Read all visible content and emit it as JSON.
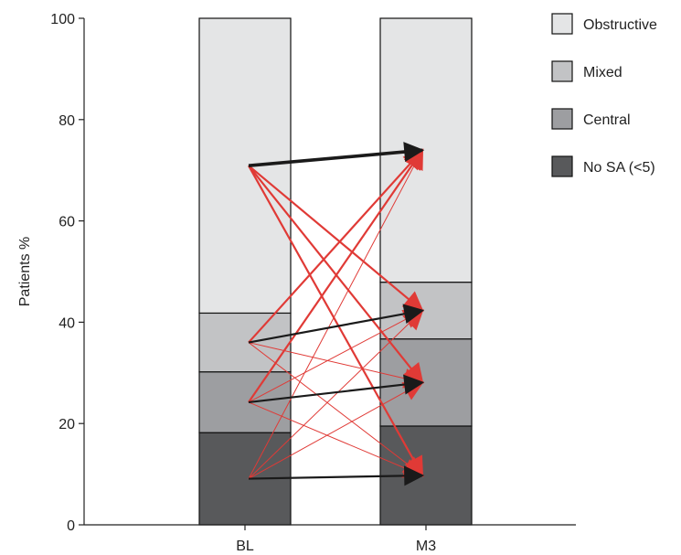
{
  "chart_data": {
    "type": "bar",
    "stacked": true,
    "ylabel": "Patients %",
    "ylim": [
      0,
      100
    ],
    "yticks": [
      0,
      20,
      40,
      60,
      80,
      100
    ],
    "categories": [
      "BL",
      "M3"
    ],
    "series": [
      {
        "name": "No SA (<5)",
        "color": "#58595b",
        "values": [
          18.2,
          19.5
        ]
      },
      {
        "name": "Central",
        "color": "#9d9ea1",
        "values": [
          12.0,
          17.2
        ]
      },
      {
        "name": "Mixed",
        "color": "#c2c3c5",
        "values": [
          11.6,
          11.2
        ]
      },
      {
        "name": "Obstructive",
        "color": "#e4e5e6",
        "values": [
          58.2,
          52.1
        ]
      }
    ],
    "legend": {
      "position": "top-right",
      "order": [
        "Obstructive",
        "Mixed",
        "Central",
        "No SA (<5)"
      ]
    },
    "transitions": [
      {
        "from": "Obstructive",
        "to": "Obstructive",
        "color": "#1a1a1a",
        "weight": "thick"
      },
      {
        "from": "Obstructive",
        "to": "Mixed",
        "color": "#e03a36",
        "weight": "medium"
      },
      {
        "from": "Obstructive",
        "to": "Central",
        "color": "#e03a36",
        "weight": "medium"
      },
      {
        "from": "Obstructive",
        "to": "No SA (<5)",
        "color": "#e03a36",
        "weight": "medium"
      },
      {
        "from": "Mixed",
        "to": "Obstructive",
        "color": "#e03a36",
        "weight": "medium"
      },
      {
        "from": "Mixed",
        "to": "Mixed",
        "color": "#1a1a1a",
        "weight": "medium"
      },
      {
        "from": "Mixed",
        "to": "Central",
        "color": "#e03a36",
        "weight": "thin"
      },
      {
        "from": "Mixed",
        "to": "No SA (<5)",
        "color": "#e03a36",
        "weight": "thin"
      },
      {
        "from": "Central",
        "to": "Obstructive",
        "color": "#e03a36",
        "weight": "medium"
      },
      {
        "from": "Central",
        "to": "Mixed",
        "color": "#e03a36",
        "weight": "thin"
      },
      {
        "from": "Central",
        "to": "Central",
        "color": "#1a1a1a",
        "weight": "medium"
      },
      {
        "from": "Central",
        "to": "No SA (<5)",
        "color": "#e03a36",
        "weight": "thin"
      },
      {
        "from": "No SA (<5)",
        "to": "Obstructive",
        "color": "#e03a36",
        "weight": "thin"
      },
      {
        "from": "No SA (<5)",
        "to": "Mixed",
        "color": "#e03a36",
        "weight": "thin"
      },
      {
        "from": "No SA (<5)",
        "to": "Central",
        "color": "#e03a36",
        "weight": "thin"
      },
      {
        "from": "No SA (<5)",
        "to": "No SA (<5)",
        "color": "#1a1a1a",
        "weight": "medium"
      }
    ]
  }
}
